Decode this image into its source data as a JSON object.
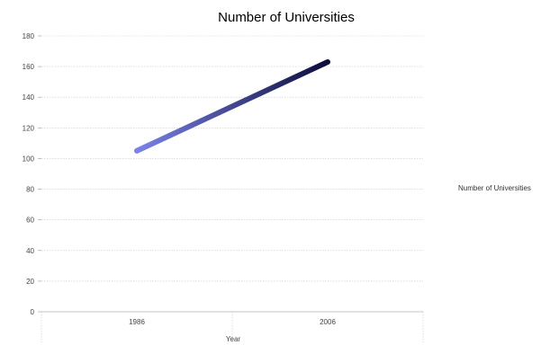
{
  "chart_data": {
    "type": "line",
    "title": "Number of Universities",
    "xlabel": "Year",
    "ylabel": "",
    "categories": [
      "1986",
      "2006"
    ],
    "series": [
      {
        "name": "Number of Universities",
        "values": [
          105,
          163
        ]
      }
    ],
    "ylim": [
      0,
      180
    ],
    "yticks": [
      0,
      20,
      40,
      60,
      80,
      100,
      120,
      140,
      160,
      180
    ],
    "grid": true,
    "legend": "right",
    "colors": {
      "line_start": "#7b83e8",
      "line_end": "#0c0c3a"
    }
  }
}
